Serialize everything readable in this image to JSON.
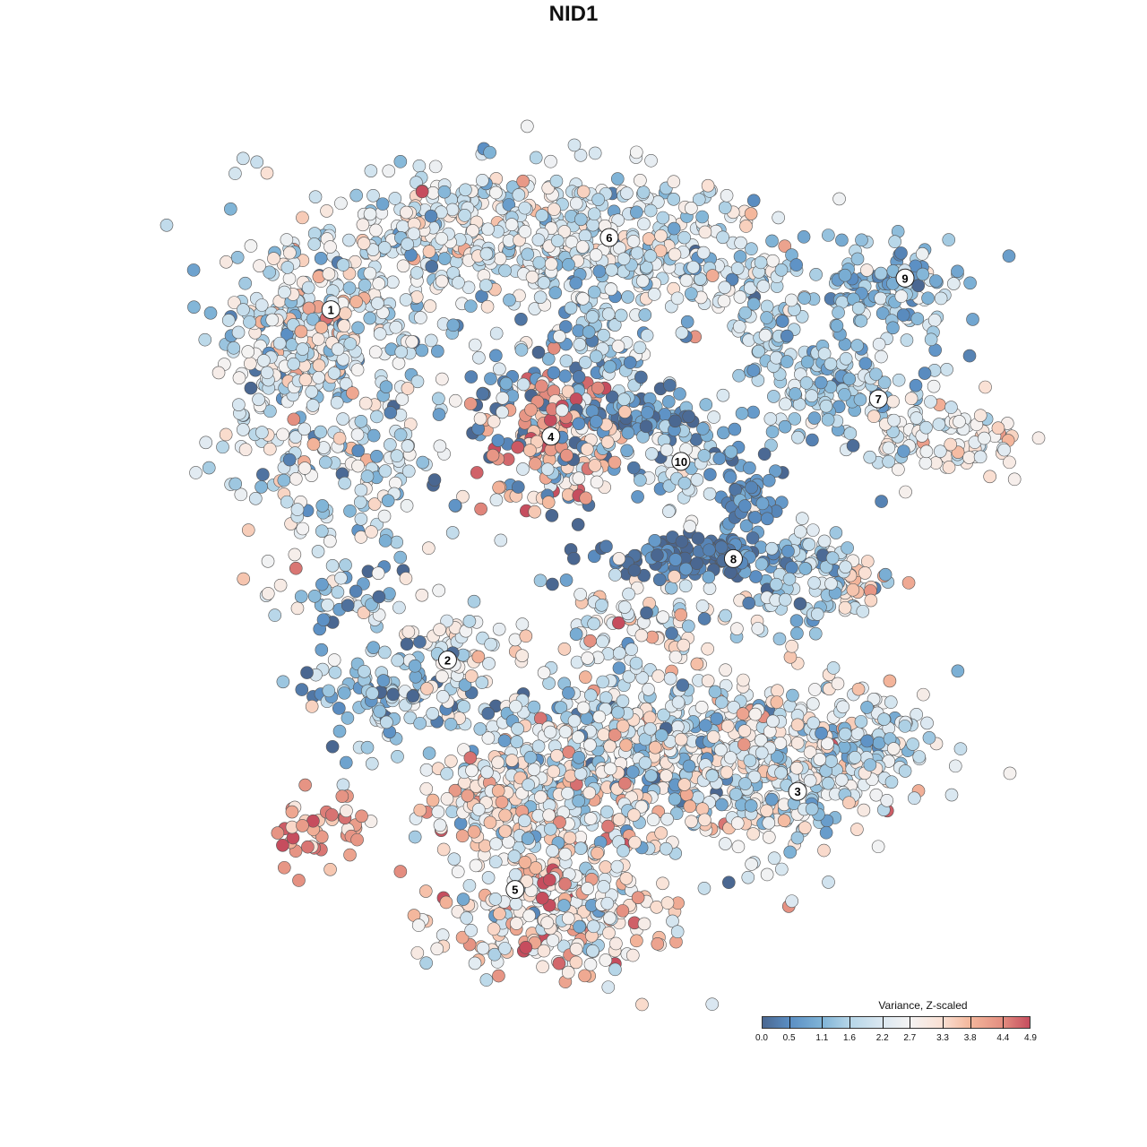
{
  "chart_data": {
    "type": "scatter",
    "title": "NID1",
    "xlabel": "",
    "ylabel": "",
    "xlim": [
      -50,
      50
    ],
    "ylim": [
      -50,
      50
    ],
    "grid": false,
    "legend": {
      "title": "Variance, Z-scaled",
      "placement": "bottom-right",
      "range": [
        0,
        4.9
      ],
      "ticks": [
        "0.0",
        "0.5",
        "1.1",
        "1.6",
        "2.2",
        "2.7",
        "3.3",
        "3.8",
        "4.4",
        "4.9"
      ],
      "tick_values": [
        0,
        0.5,
        1.1,
        1.6,
        2.2,
        2.7,
        3.3,
        3.8,
        4.4,
        4.9
      ],
      "colors": [
        "#4a6791",
        "#5b8fc4",
        "#80b4d7",
        "#b6d6e8",
        "#dbe8f1",
        "#f4f3f3",
        "#fae0d3",
        "#f4b79c",
        "#e48e80",
        "#c64d5e"
      ]
    },
    "cluster_labels": [
      {
        "label": "1",
        "x": -31.8,
        "y": 32.2
      },
      {
        "label": "2",
        "x": -17.8,
        "y": -11.0
      },
      {
        "label": "3",
        "x": 24.2,
        "y": -27.2
      },
      {
        "label": "4",
        "x": -5.4,
        "y": 16.6
      },
      {
        "label": "5",
        "x": -9.7,
        "y": -39.3
      },
      {
        "label": "6",
        "x": 1.6,
        "y": 41.1
      },
      {
        "label": "7",
        "x": 33.9,
        "y": 21.2
      },
      {
        "label": "8",
        "x": 16.5,
        "y": 1.5
      },
      {
        "label": "9",
        "x": 37.1,
        "y": 36.1
      },
      {
        "label": "10",
        "x": 10.2,
        "y": 13.5
      }
    ],
    "point_groups_note_fields": [
      "x",
      "y",
      "sdx",
      "sdy",
      "n",
      "mean",
      "sd"
    ],
    "point_groups": [
      [
        -31,
        30,
        7,
        7,
        250,
        2.0,
        0.8
      ],
      [
        -38,
        25,
        3.5,
        8,
        120,
        2.2,
        0.8
      ],
      [
        -30,
        10,
        6,
        6,
        120,
        1.9,
        0.8
      ],
      [
        -30,
        -3,
        5,
        2,
        40,
        1.5,
        0.9
      ],
      [
        -33,
        30,
        3,
        3,
        30,
        3.6,
        0.5
      ],
      [
        -15,
        42,
        8,
        4,
        250,
        2.3,
        0.8
      ],
      [
        2,
        41,
        8,
        4,
        220,
        2.2,
        0.9
      ],
      [
        15,
        37,
        5,
        4,
        100,
        2.0,
        0.8
      ],
      [
        -4,
        30,
        5,
        5,
        60,
        1.8,
        0.8
      ],
      [
        2,
        27,
        3,
        4,
        40,
        1.5,
        0.6
      ],
      [
        35,
        35,
        5,
        3,
        120,
        1.3,
        0.6
      ],
      [
        22,
        28,
        3,
        3,
        40,
        1.4,
        0.5
      ],
      [
        28,
        23,
        5,
        3,
        100,
        1.5,
        0.6
      ],
      [
        38,
        18,
        5,
        3,
        80,
        2.2,
        0.8
      ],
      [
        46,
        16,
        3,
        2,
        40,
        3.0,
        0.7
      ],
      [
        -5,
        16,
        4,
        4,
        180,
        3.6,
        0.9
      ],
      [
        -5,
        18,
        6,
        5,
        80,
        0.4,
        0.4
      ],
      [
        6,
        19,
        4,
        2,
        60,
        0.7,
        0.6
      ],
      [
        10,
        13,
        2.5,
        3,
        40,
        1.9,
        0.6
      ],
      [
        18,
        9,
        2,
        4,
        60,
        0.5,
        0.4
      ],
      [
        12,
        1.5,
        5,
        1.2,
        120,
        0.2,
        0.3
      ],
      [
        26,
        -1,
        4,
        3,
        100,
        1.4,
        0.7
      ],
      [
        31,
        -2,
        2,
        1.5,
        20,
        3.5,
        0.4
      ],
      [
        -25,
        -15,
        5,
        3,
        100,
        1.3,
        0.8
      ],
      [
        -17,
        -10,
        3,
        2,
        50,
        2.6,
        0.6
      ],
      [
        6,
        -6,
        5,
        3,
        80,
        2.5,
        1.0
      ],
      [
        5,
        -22,
        12,
        6,
        500,
        2.2,
        1.0
      ],
      [
        22,
        -24,
        8,
        5,
        300,
        2.3,
        0.9
      ],
      [
        33,
        -20,
        4,
        3,
        80,
        1.6,
        0.6
      ],
      [
        -8,
        -30,
        7,
        4,
        200,
        3.0,
        1.0
      ],
      [
        -5,
        -42,
        7,
        4,
        250,
        3.0,
        1.0
      ],
      [
        -33,
        -32,
        3,
        2,
        40,
        4.2,
        0.7
      ],
      [
        0,
        10,
        20,
        15,
        40,
        1.0,
        1.0
      ]
    ]
  }
}
